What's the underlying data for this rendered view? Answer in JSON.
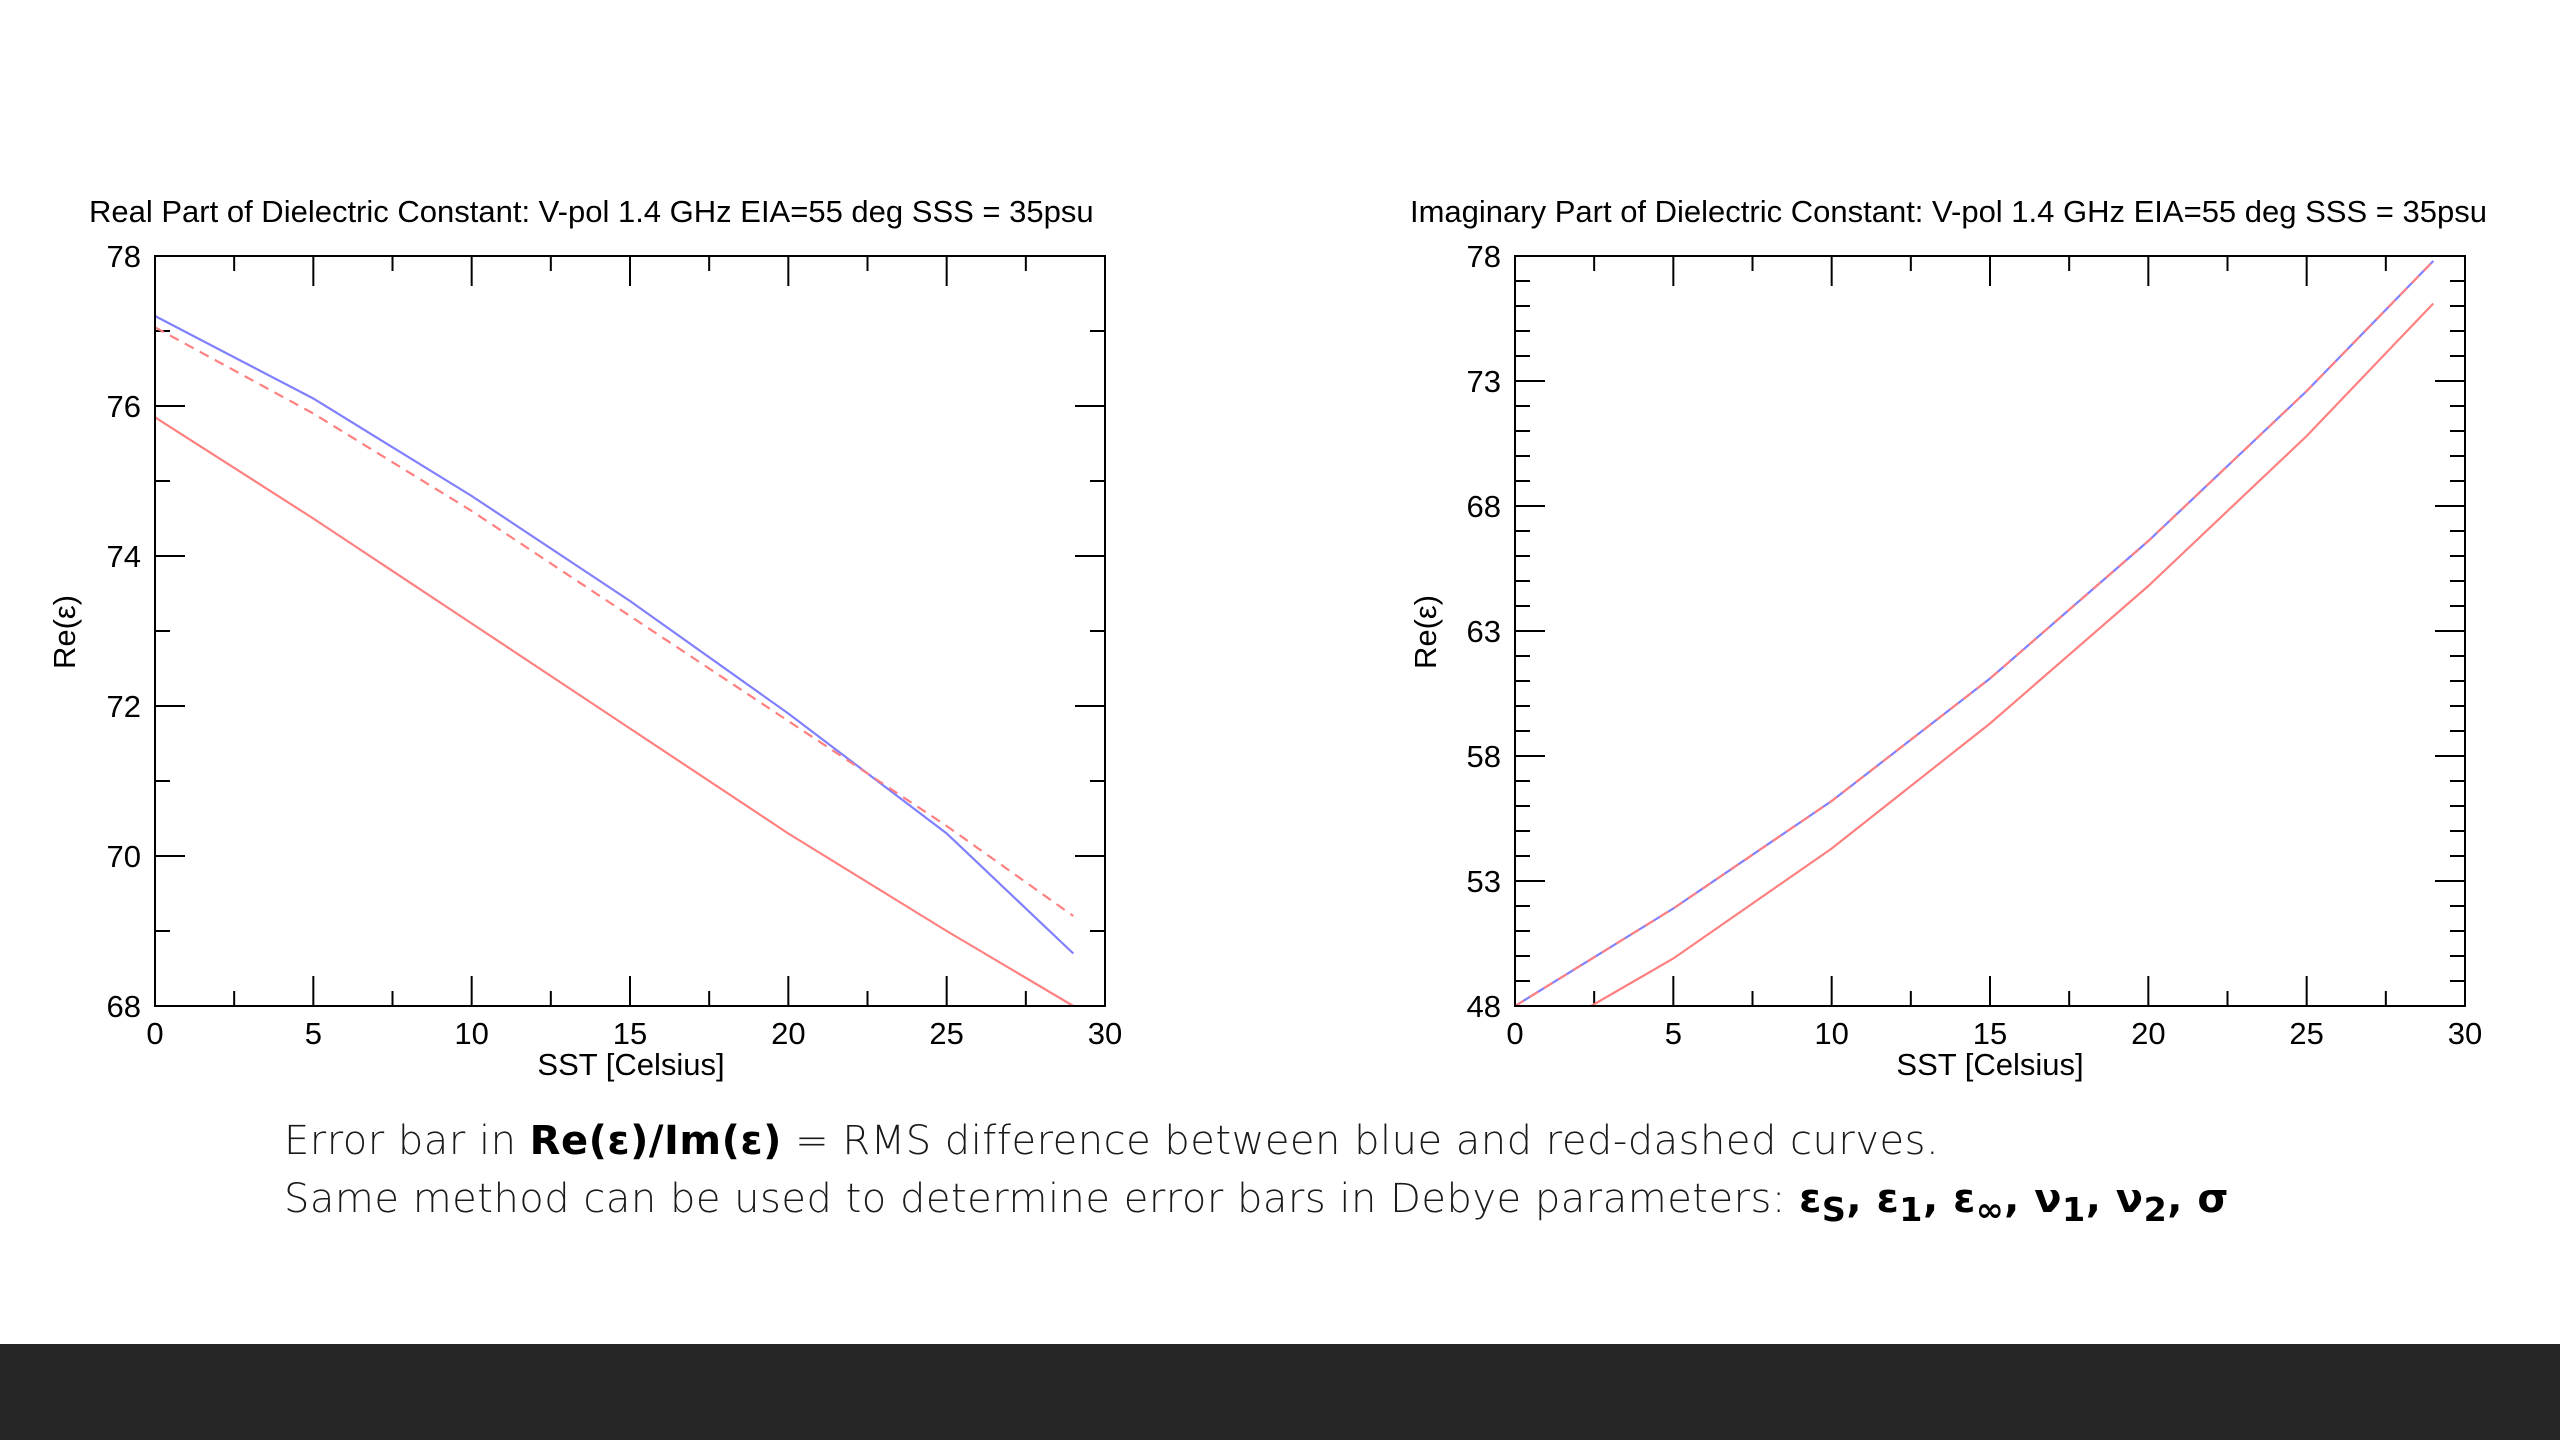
{
  "caption": {
    "line1_prefix": "Error bar in",
    "line1_emph": "Re(ε)/Im(ε)",
    "line1_suffix": "= RMS difference between blue and red-dashed curves.",
    "line2_prefix": "Same method can be used to determine error bars in Debye parameters:",
    "line2_params": "εS, ε1, ε∞, ν1, ν2, σ"
  },
  "colors": {
    "blue_curve": "#8080ff",
    "red_curve": "#ff8080",
    "red_dashed_curve": "#ff8080",
    "footer_bar": "#262626"
  },
  "chart_data": [
    {
      "type": "line",
      "title": "Real Part of Dielectric Constant:  V-pol 1.4 GHz EIA=55 deg  SSS = 35psu",
      "xlabel": "SST [Celsius]",
      "ylabel": "Re(ε)",
      "xlim": [
        0,
        30
      ],
      "ylim": [
        68,
        78
      ],
      "xticks": [
        "0",
        "5",
        "10",
        "15",
        "20",
        "25",
        "30"
      ],
      "yticks": [
        "68",
        "70",
        "72",
        "74",
        "76",
        "78"
      ],
      "x_minor_step": 2.5,
      "y_minor_step": 1,
      "grid": false,
      "series": [
        {
          "style": "solid",
          "color": "#8080ff",
          "x": [
            0,
            5,
            10,
            15,
            20,
            25,
            29
          ],
          "y": [
            77.2,
            76.1,
            74.8,
            73.4,
            71.9,
            70.3,
            68.7
          ]
        },
        {
          "style": "dashed",
          "color": "#ff8080",
          "x": [
            0,
            5,
            10,
            15,
            20,
            25,
            29
          ],
          "y": [
            77.05,
            75.9,
            74.6,
            73.2,
            71.8,
            70.4,
            69.2
          ]
        },
        {
          "style": "solid",
          "color": "#ff8080",
          "x": [
            0,
            5,
            10,
            15,
            20,
            25,
            29
          ],
          "y": [
            75.85,
            74.5,
            73.1,
            71.7,
            70.3,
            69.0,
            68.0
          ]
        }
      ]
    },
    {
      "type": "line",
      "title": "Imaginary Part of Dielectric Constant:  V-pol 1.4 GHz EIA=55 deg  SSS = 35psu",
      "xlabel": "SST [Celsius]",
      "ylabel": "Re(ε)",
      "xlim": [
        0,
        30
      ],
      "ylim": [
        48,
        78
      ],
      "xticks": [
        "0",
        "5",
        "10",
        "15",
        "20",
        "25",
        "30"
      ],
      "yticks": [
        "48",
        "53",
        "58",
        "63",
        "68",
        "73",
        "78"
      ],
      "x_minor_step": 2.5,
      "y_minor_step": 1,
      "grid": false,
      "series": [
        {
          "style": "solid",
          "color": "#8080ff",
          "x": [
            0,
            5,
            10,
            15,
            20,
            25,
            29
          ],
          "y": [
            48.0,
            51.9,
            56.2,
            61.1,
            66.6,
            72.6,
            77.8
          ]
        },
        {
          "style": "dashed",
          "color": "#ff8080",
          "x": [
            0,
            5,
            10,
            15,
            20,
            25,
            29
          ],
          "y": [
            48.0,
            51.9,
            56.2,
            61.1,
            66.6,
            72.6,
            77.8
          ]
        },
        {
          "style": "solid",
          "color": "#ff8080",
          "x": [
            2.4,
            5,
            10,
            15,
            20,
            25,
            29
          ],
          "y": [
            48.0,
            49.9,
            54.3,
            59.3,
            64.8,
            70.8,
            76.1
          ]
        }
      ]
    }
  ]
}
